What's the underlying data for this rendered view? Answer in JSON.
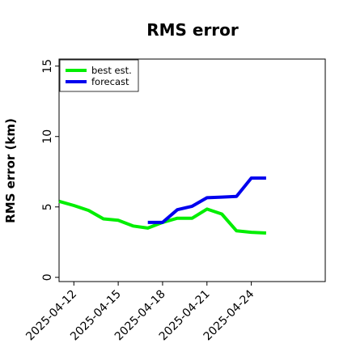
{
  "chart_data": {
    "type": "line",
    "title": "RMS error",
    "xlabel": "",
    "ylabel": "RMS error (km)",
    "x_ticks": [
      "2025-04-12",
      "2025-04-15",
      "2025-04-18",
      "2025-04-21",
      "2025-04-24"
    ],
    "xlim": [
      "2025-04-11",
      "2025-04-29"
    ],
    "ylim": [
      -0.3,
      15.5
    ],
    "y_ticks": [
      0,
      5,
      10,
      15
    ],
    "grid": false,
    "legend_position": "top-left",
    "series": [
      {
        "name": "best est.",
        "color": "#00ee00",
        "x": [
          "2025-04-11",
          "2025-04-12",
          "2025-04-13",
          "2025-04-14",
          "2025-04-15",
          "2025-04-16",
          "2025-04-17",
          "2025-04-18",
          "2025-04-19",
          "2025-04-20",
          "2025-04-21",
          "2025-04-22",
          "2025-04-23",
          "2025-04-24",
          "2025-04-25"
        ],
        "y": [
          5.4,
          5.1,
          4.75,
          4.15,
          4.05,
          3.65,
          3.5,
          3.9,
          4.2,
          4.2,
          4.85,
          4.5,
          3.3,
          3.2,
          3.15
        ]
      },
      {
        "name": "forecast",
        "color": "#0000ee",
        "x": [
          "2025-04-17",
          "2025-04-18",
          "2025-04-19",
          "2025-04-20",
          "2025-04-21",
          "2025-04-22",
          "2025-04-23",
          "2025-04-24",
          "2025-04-25"
        ],
        "y": [
          3.9,
          3.9,
          4.8,
          5.05,
          5.65,
          5.7,
          5.75,
          7.05,
          7.05
        ]
      }
    ]
  }
}
